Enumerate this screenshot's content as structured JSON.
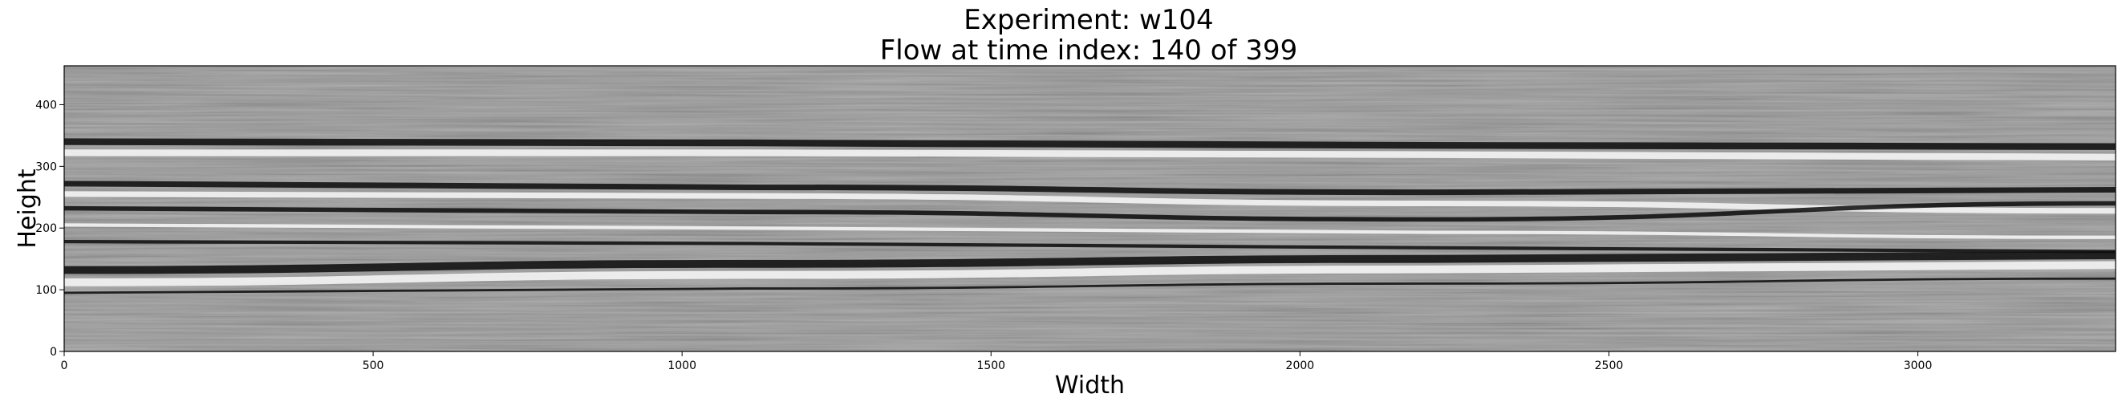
{
  "chart_data": {
    "type": "heatmap",
    "title_lines": [
      "Experiment: w104",
      "Flow at time index: 140 of 399"
    ],
    "xlabel": "Width",
    "ylabel": "Height",
    "xlim": [
      0,
      3320
    ],
    "ylim": [
      0,
      463
    ],
    "xticks": [
      0,
      500,
      1000,
      1500,
      2000,
      2500,
      3000
    ],
    "yticks": [
      0,
      100,
      200,
      300,
      400
    ],
    "colormap": "gray",
    "background_gray": "#8e8e8e",
    "streaks": [
      {
        "y": [
          340,
          338,
          334,
          332
        ],
        "tone": "dark",
        "width": 6
      },
      {
        "y": [
          322,
          322,
          319,
          315
        ],
        "tone": "light",
        "width": 6
      },
      {
        "y": [
          272,
          266,
          258,
          262
        ],
        "tone": "dark",
        "width": 5
      },
      {
        "y": [
          255,
          252,
          240,
          228
        ],
        "tone": "light",
        "width": 5
      },
      {
        "y": [
          232,
          226,
          214,
          240
        ],
        "tone": "dark",
        "width": 4
      },
      {
        "y": [
          205,
          200,
          193,
          185
        ],
        "tone": "light",
        "width": 3
      },
      {
        "y": [
          178,
          175,
          168,
          162
        ],
        "tone": "dark",
        "width": 3
      },
      {
        "y": [
          132,
          142,
          150,
          156
        ],
        "tone": "dark",
        "width": 7
      },
      {
        "y": [
          112,
          124,
          133,
          140
        ],
        "tone": "light",
        "width": 7
      },
      {
        "y": [
          95,
          102,
          110,
          118
        ],
        "tone": "dark",
        "width": 2
      }
    ]
  }
}
